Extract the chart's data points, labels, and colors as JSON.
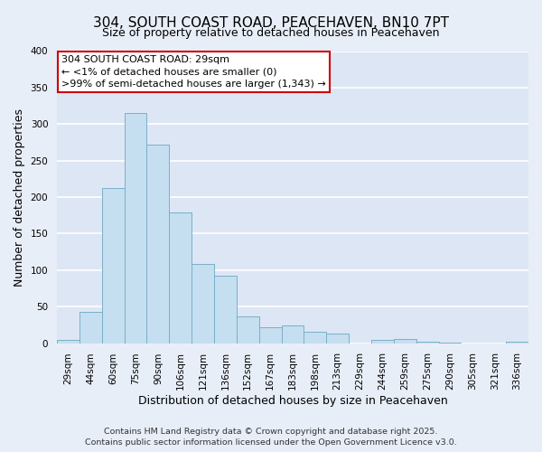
{
  "title": "304, SOUTH COAST ROAD, PEACEHAVEN, BN10 7PT",
  "subtitle": "Size of property relative to detached houses in Peacehaven",
  "xlabel": "Distribution of detached houses by size in Peacehaven",
  "ylabel": "Number of detached properties",
  "bar_labels": [
    "29sqm",
    "44sqm",
    "60sqm",
    "75sqm",
    "90sqm",
    "106sqm",
    "121sqm",
    "136sqm",
    "152sqm",
    "167sqm",
    "183sqm",
    "198sqm",
    "213sqm",
    "229sqm",
    "244sqm",
    "259sqm",
    "275sqm",
    "290sqm",
    "305sqm",
    "321sqm",
    "336sqm"
  ],
  "bar_values": [
    5,
    43,
    212,
    315,
    272,
    179,
    109,
    92,
    37,
    22,
    24,
    16,
    13,
    0,
    5,
    6,
    2,
    1,
    0,
    0,
    2
  ],
  "bar_color": "#c5dff0",
  "bar_edge_color": "#7aafc8",
  "ylim": [
    0,
    400
  ],
  "yticks": [
    0,
    50,
    100,
    150,
    200,
    250,
    300,
    350,
    400
  ],
  "annotation_line1": "304 SOUTH COAST ROAD: 29sqm",
  "annotation_line2": "← <1% of detached houses are smaller (0)",
  "annotation_line3": ">99% of semi-detached houses are larger (1,343) →",
  "annotation_box_color": "#ffffff",
  "annotation_box_edge_color": "#cc0000",
  "bg_color": "#e8eef8",
  "plot_bg_color": "#dde6f4",
  "footer_line1": "Contains HM Land Registry data © Crown copyright and database right 2025.",
  "footer_line2": "Contains public sector information licensed under the Open Government Licence v3.0.",
  "grid_color": "#ffffff",
  "title_fontsize": 11,
  "subtitle_fontsize": 9,
  "xlabel_fontsize": 9,
  "ylabel_fontsize": 9,
  "tick_fontsize": 7.5,
  "annot_fontsize": 8,
  "footer_fontsize": 6.8
}
